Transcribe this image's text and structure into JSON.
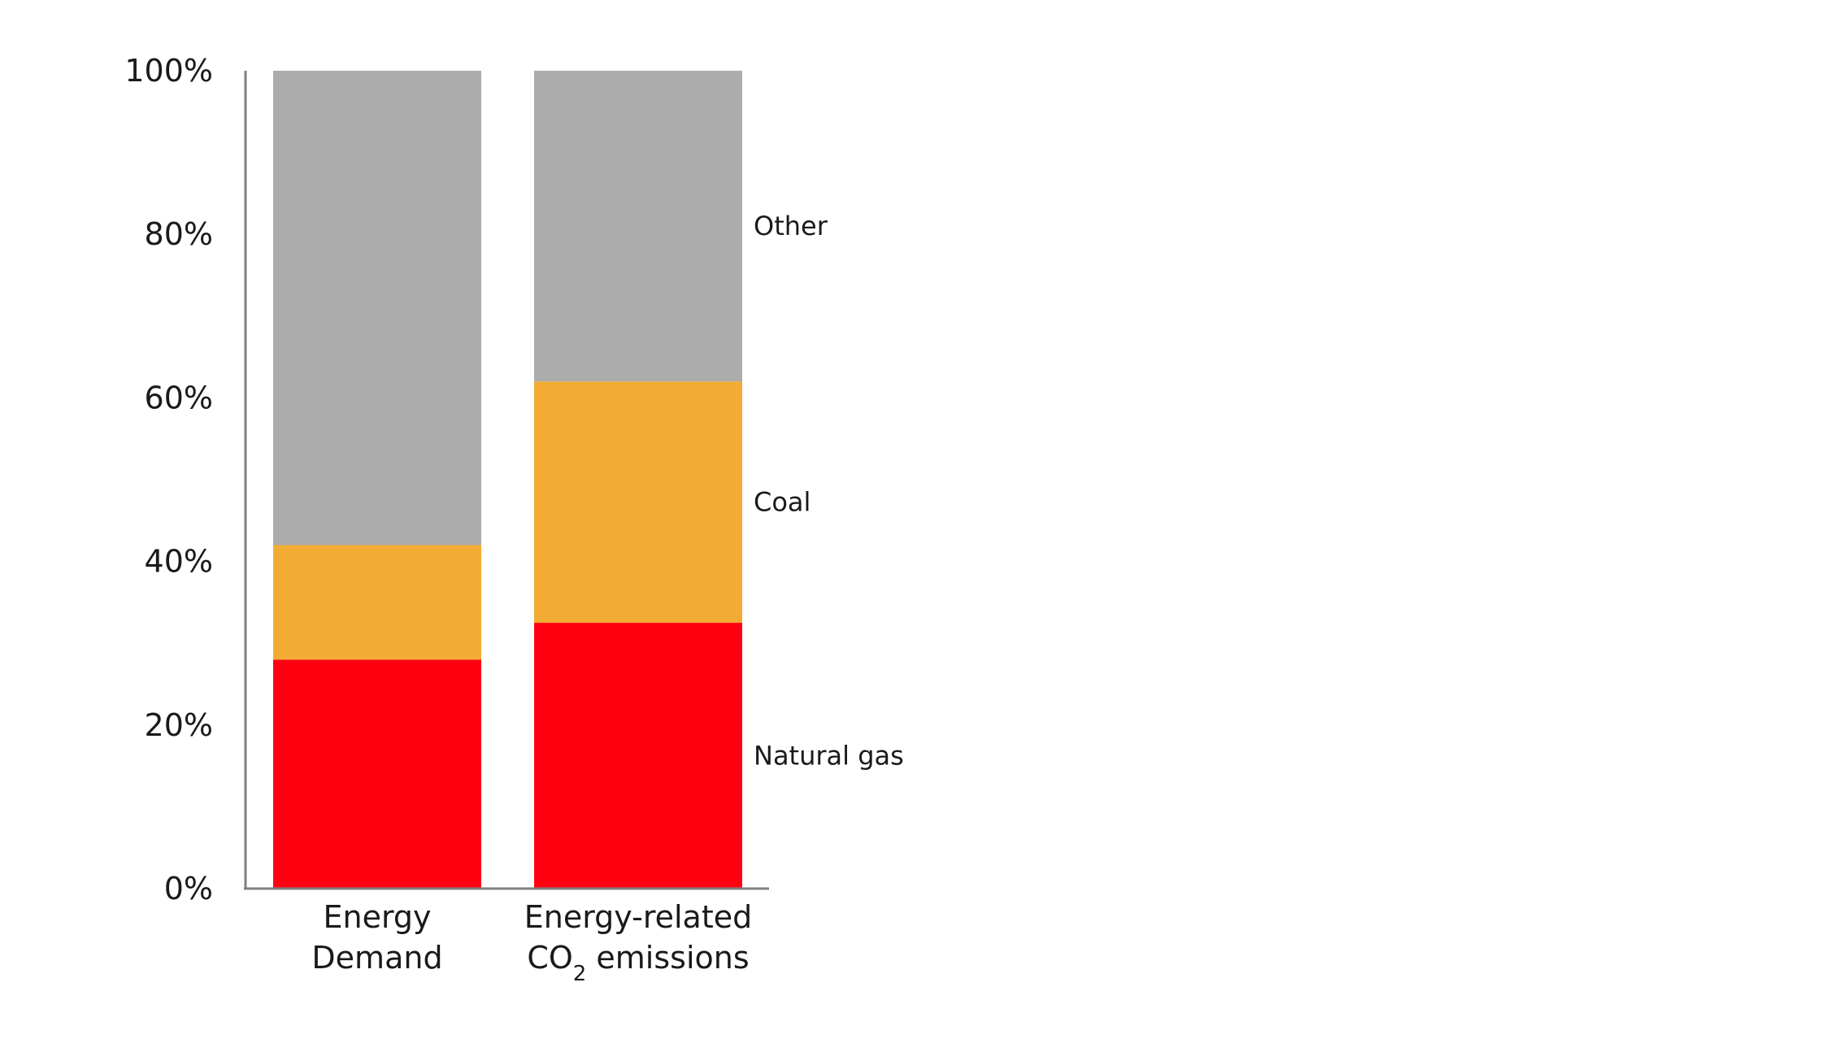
{
  "chart_data": {
    "type": "bar",
    "stacked": true,
    "categories": [
      {
        "lines": [
          "Energy",
          "Demand"
        ]
      },
      {
        "lines": [
          "Energy-related",
          "CO|2| emissions"
        ]
      }
    ],
    "series": [
      {
        "name": "Natural gas",
        "color": "#ff0011",
        "values": [
          28,
          32.5
        ]
      },
      {
        "name": "Coal",
        "color": "#f2ac33",
        "values": [
          14,
          29.5
        ]
      },
      {
        "name": "Other",
        "color": "#acacac",
        "values": [
          58,
          38
        ]
      }
    ],
    "yticks": [
      "0%",
      "20%",
      "40%",
      "60%",
      "80%",
      "100%"
    ],
    "ylim": [
      0,
      100
    ],
    "title": "",
    "xlabel": "",
    "ylabel": "",
    "legend_position": "right",
    "grid": false
  }
}
